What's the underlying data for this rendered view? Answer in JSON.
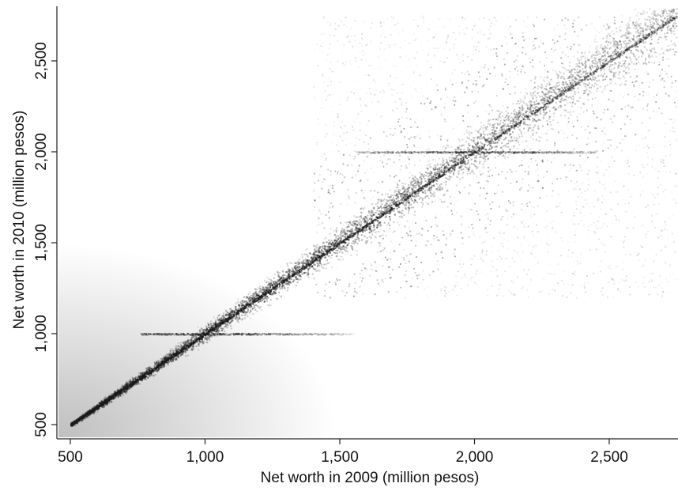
{
  "chart_data": {
    "type": "heatmap",
    "title": "",
    "xlabel": "Net worth in 2009 (million pesos)",
    "ylabel": "Net worth in 2010 (million pesos)",
    "xlim": [
      500,
      2750
    ],
    "ylim": [
      500,
      2750
    ],
    "x_ticks": [
      {
        "value": 500,
        "label": "500"
      },
      {
        "value": 1000,
        "label": "1,000"
      },
      {
        "value": 1500,
        "label": "1,500"
      },
      {
        "value": 2000,
        "label": "2,000"
      },
      {
        "value": 2500,
        "label": "2,500"
      }
    ],
    "y_ticks": [
      {
        "value": 500,
        "label": "500"
      },
      {
        "value": 1000,
        "label": "1,000"
      },
      {
        "value": 1500,
        "label": "1,500"
      },
      {
        "value": 2000,
        "label": "2,000"
      },
      {
        "value": 2500,
        "label": "2,500"
      }
    ],
    "colormap": {
      "low": "#ffffff",
      "high": "#1a1a1a"
    },
    "density_features": [
      {
        "kind": "diagonal",
        "from": [
          500,
          500
        ],
        "to": [
          2750,
          2750
        ],
        "intensity": 0.85
      },
      {
        "kind": "horizontal-band",
        "y": 1000,
        "x_range": [
          760,
          1550
        ],
        "intensity": 0.55
      },
      {
        "kind": "horizontal-band",
        "y": 2000,
        "x_range": [
          1560,
          2450
        ],
        "intensity": 0.5
      },
      {
        "kind": "scatter-cloud",
        "x_range": [
          1400,
          2750
        ],
        "y_range": [
          1200,
          2750
        ],
        "intensity": 0.25
      }
    ],
    "grid": false,
    "legend": "none"
  }
}
